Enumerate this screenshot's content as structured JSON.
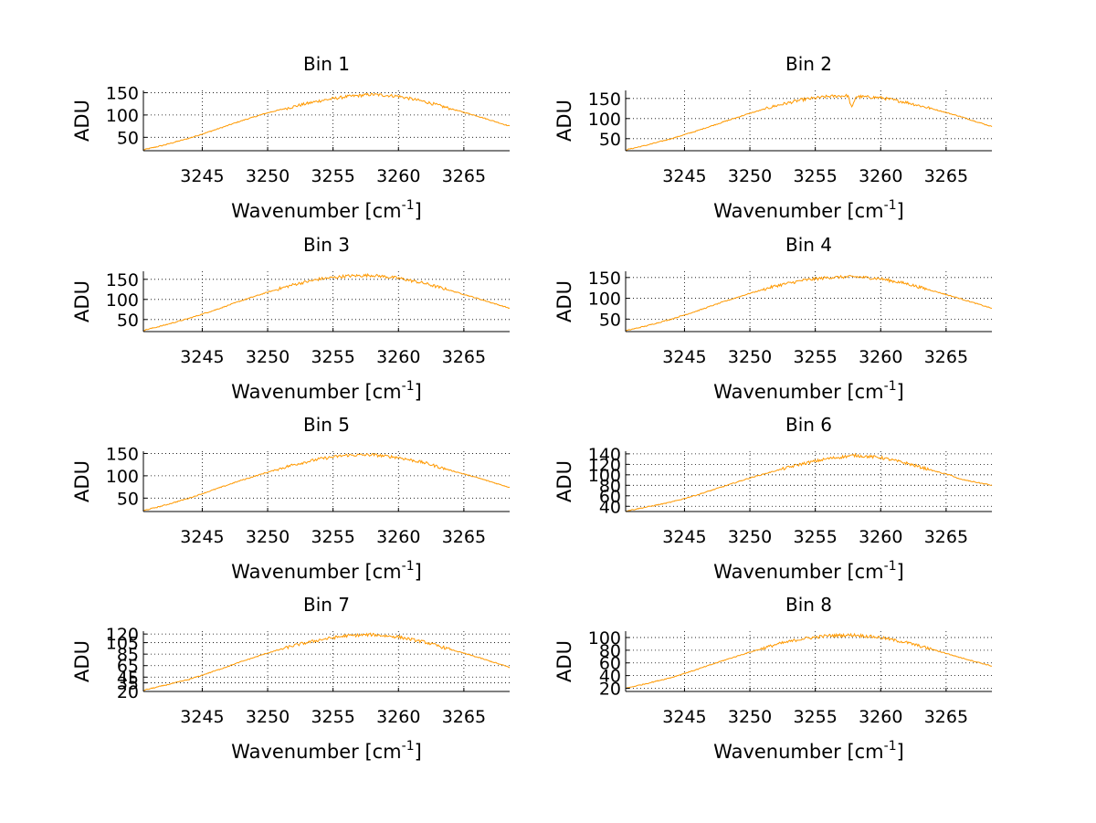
{
  "figure": {
    "layout": "4x2 subplot grid",
    "background_color": "#ffffff"
  },
  "chart_data": [
    {
      "type": "line",
      "title": "Bin 1",
      "xlabel": "Wavenumber [cm-1]",
      "xlabel_main": "Wavenumber [cm",
      "xlabel_sup": "-1",
      "xlabel_end": "]",
      "ylabel": "ADU",
      "xlim": [
        3240.5,
        3268.5
      ],
      "ylim": [
        20,
        155
      ],
      "xticks": [
        3245,
        3250,
        3255,
        3260,
        3265
      ],
      "yticks": [
        50,
        100,
        150
      ],
      "grid": true,
      "series": [
        {
          "color": "#ff9900",
          "x": [
            3240.5,
            3242,
            3244,
            3246,
            3248,
            3250,
            3252,
            3254,
            3256,
            3258,
            3260,
            3262,
            3264,
            3266,
            3268.5
          ],
          "y": [
            22,
            32,
            48,
            67,
            87,
            105,
            119,
            132,
            141,
            146,
            142,
            130,
            114,
            98,
            75
          ]
        }
      ]
    },
    {
      "type": "line",
      "title": "Bin 2",
      "xlabel": "Wavenumber [cm-1]",
      "xlabel_main": "Wavenumber [cm",
      "xlabel_sup": "-1",
      "xlabel_end": "]",
      "ylabel": "ADU",
      "xlim": [
        3240.5,
        3268.5
      ],
      "ylim": [
        20,
        170
      ],
      "xticks": [
        3245,
        3250,
        3255,
        3260,
        3265
      ],
      "yticks": [
        50,
        100,
        150
      ],
      "grid": true,
      "series": [
        {
          "color": "#ff9900",
          "x": [
            3240.5,
            3242,
            3244,
            3246,
            3248,
            3250,
            3252,
            3254,
            3256,
            3257.5,
            3257.8,
            3258.1,
            3260,
            3262,
            3264,
            3266,
            3268.5
          ],
          "y": [
            22,
            33,
            50,
            70,
            92,
            113,
            132,
            147,
            155,
            157,
            125,
            155,
            152,
            140,
            124,
            106,
            80
          ]
        }
      ]
    },
    {
      "type": "line",
      "title": "Bin 3",
      "xlabel": "Wavenumber [cm-1]",
      "xlabel_main": "Wavenumber [cm",
      "xlabel_sup": "-1",
      "xlabel_end": "]",
      "ylabel": "ADU",
      "xlim": [
        3240.5,
        3268.5
      ],
      "ylim": [
        20,
        170
      ],
      "xticks": [
        3245,
        3250,
        3255,
        3260,
        3265
      ],
      "yticks": [
        50,
        100,
        150
      ],
      "grid": true,
      "series": [
        {
          "color": "#ff9900",
          "x": [
            3240.5,
            3242,
            3244,
            3246,
            3248,
            3250,
            3252,
            3254,
            3256,
            3258,
            3260,
            3262,
            3264,
            3266,
            3268.5
          ],
          "y": [
            23,
            35,
            53,
            74,
            97,
            118,
            137,
            151,
            158,
            160,
            153,
            140,
            122,
            103,
            78
          ]
        }
      ]
    },
    {
      "type": "line",
      "title": "Bin 4",
      "xlabel": "Wavenumber [cm-1]",
      "xlabel_main": "Wavenumber [cm",
      "xlabel_sup": "-1",
      "xlabel_end": "]",
      "ylabel": "ADU",
      "xlim": [
        3240.5,
        3268.5
      ],
      "ylim": [
        20,
        165
      ],
      "xticks": [
        3245,
        3250,
        3255,
        3260,
        3265
      ],
      "yticks": [
        50,
        100,
        150
      ],
      "grid": true,
      "series": [
        {
          "color": "#ff9900",
          "x": [
            3240.5,
            3242,
            3244,
            3246,
            3248,
            3250,
            3252,
            3254,
            3256,
            3258,
            3260,
            3262,
            3264,
            3266,
            3268.5
          ],
          "y": [
            22,
            33,
            50,
            70,
            92,
            112,
            130,
            143,
            150,
            152,
            147,
            135,
            118,
            100,
            76
          ]
        }
      ]
    },
    {
      "type": "line",
      "title": "Bin 5",
      "xlabel": "Wavenumber [cm-1]",
      "xlabel_main": "Wavenumber [cm",
      "xlabel_sup": "-1",
      "xlabel_end": "]",
      "ylabel": "ADU",
      "xlim": [
        3240.5,
        3268.5
      ],
      "ylim": [
        20,
        155
      ],
      "xticks": [
        3245,
        3250,
        3255,
        3260,
        3265
      ],
      "yticks": [
        50,
        100,
        150
      ],
      "grid": true,
      "series": [
        {
          "color": "#ff9900",
          "x": [
            3240.5,
            3242,
            3244,
            3246,
            3248,
            3250,
            3252,
            3254,
            3256,
            3258,
            3260,
            3262,
            3264,
            3266,
            3268.5
          ],
          "y": [
            22,
            33,
            50,
            70,
            90,
            108,
            125,
            138,
            146,
            147,
            141,
            129,
            112,
            96,
            74
          ]
        }
      ]
    },
    {
      "type": "line",
      "title": "Bin 6",
      "xlabel": "Wavenumber [cm-1]",
      "xlabel_main": "Wavenumber [cm",
      "xlabel_sup": "-1",
      "xlabel_end": "]",
      "ylabel": "ADU",
      "xlim": [
        3240.5,
        3268.5
      ],
      "ylim": [
        30,
        145
      ],
      "xticks": [
        3245,
        3250,
        3255,
        3260,
        3265
      ],
      "yticks": [
        40,
        60,
        80,
        100,
        120,
        140
      ],
      "ytick_labels": [
        "40",
        "60",
        "80",
        "100",
        "120",
        "140"
      ],
      "grid": true,
      "series": [
        {
          "color": "#ff9900",
          "x": [
            3240.5,
            3242,
            3244,
            3246,
            3248,
            3250,
            3252,
            3254,
            3256,
            3258,
            3260,
            3262,
            3264,
            3265.5,
            3266,
            3268.5
          ],
          "y": [
            31,
            38,
            48,
            62,
            78,
            94,
            108,
            121,
            131,
            137,
            133,
            122,
            108,
            98,
            92,
            80
          ]
        }
      ]
    },
    {
      "type": "line",
      "title": "Bin 7",
      "xlabel": "Wavenumber [cm-1]",
      "xlabel_main": "Wavenumber [cm",
      "xlabel_sup": "-1",
      "xlabel_end": "]",
      "ylabel": "ADU",
      "xlim": [
        3240.5,
        3268.5
      ],
      "ylim": [
        20,
        125
      ],
      "xticks": [
        3245,
        3250,
        3255,
        3260,
        3265
      ],
      "yticks": [
        20,
        35,
        45,
        65,
        85,
        105,
        120
      ],
      "ytick_labels": [
        "20",
        "35",
        "45",
        "65",
        "85",
        "105",
        "120"
      ],
      "grid": true,
      "series": [
        {
          "color": "#ff9900",
          "x": [
            3240.5,
            3242,
            3244,
            3246,
            3248,
            3250,
            3252,
            3254,
            3256,
            3258,
            3260,
            3262,
            3264,
            3266,
            3268.5
          ],
          "y": [
            22,
            30,
            41,
            56,
            72,
            87,
            100,
            110,
            117,
            119,
            115,
            106,
            93,
            80,
            62
          ]
        }
      ]
    },
    {
      "type": "line",
      "title": "Bin 8",
      "xlabel": "Wavenumber [cm-1]",
      "xlabel_main": "Wavenumber [cm",
      "xlabel_sup": "-1",
      "xlabel_end": "]",
      "ylabel": "ADU",
      "xlim": [
        3240.5,
        3268.5
      ],
      "ylim": [
        15,
        110
      ],
      "xticks": [
        3245,
        3250,
        3255,
        3260,
        3265
      ],
      "yticks": [
        20,
        40,
        60,
        80,
        100
      ],
      "ytick_labels": [
        "20",
        "40",
        "60",
        "80",
        "100"
      ],
      "grid": true,
      "series": [
        {
          "color": "#ff9900",
          "x": [
            3240.5,
            3242,
            3244,
            3246,
            3248,
            3250,
            3252,
            3254,
            3256,
            3258,
            3260,
            3262,
            3264,
            3266,
            3268.5
          ],
          "y": [
            20,
            27,
            37,
            50,
            64,
            77,
            89,
            98,
            103,
            104,
            100,
            92,
            81,
            69,
            55
          ]
        }
      ]
    }
  ]
}
